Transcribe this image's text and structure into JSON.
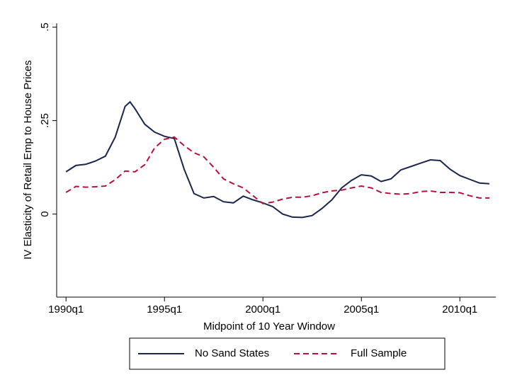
{
  "chart_data": {
    "type": "line",
    "y_label": "IV Elasticity of Retail Emp to House Prices",
    "x_label": "Midpoint of 10 Year Window",
    "x": [
      120,
      122,
      124,
      126,
      128,
      130,
      132,
      133,
      134,
      136,
      138,
      140,
      142,
      144,
      146,
      148,
      150,
      152,
      154,
      156,
      158,
      160,
      162,
      164,
      166,
      168,
      170,
      172,
      174,
      176,
      178,
      180,
      182,
      184,
      186,
      188,
      190,
      192,
      194,
      196,
      198,
      200,
      202,
      204,
      206
    ],
    "series": [
      {
        "name": "No Sand States",
        "color": "#1a2550",
        "dash": "solid",
        "values": [
          0.113,
          0.13,
          0.133,
          0.142,
          0.155,
          0.206,
          0.288,
          0.3,
          0.282,
          0.24,
          0.219,
          0.208,
          0.202,
          0.12,
          0.055,
          0.043,
          0.047,
          0.033,
          0.03,
          0.048,
          0.038,
          0.03,
          0.02,
          0.0,
          -0.008,
          -0.009,
          -0.004,
          0.015,
          0.038,
          0.07,
          0.09,
          0.105,
          0.102,
          0.087,
          0.094,
          0.118,
          0.127,
          0.136,
          0.145,
          0.143,
          0.12,
          0.103,
          0.093,
          0.083,
          0.081
        ]
      },
      {
        "name": "Full Sample",
        "color": "#b5123e",
        "dash": "dashed",
        "values": [
          0.058,
          0.074,
          0.072,
          0.073,
          0.075,
          0.092,
          0.115,
          0.114,
          0.113,
          0.132,
          0.177,
          0.2,
          0.206,
          0.183,
          0.164,
          0.153,
          0.125,
          0.094,
          0.081,
          0.07,
          0.049,
          0.028,
          0.032,
          0.04,
          0.045,
          0.045,
          0.049,
          0.057,
          0.062,
          0.064,
          0.07,
          0.075,
          0.07,
          0.058,
          0.055,
          0.053,
          0.055,
          0.06,
          0.062,
          0.058,
          0.058,
          0.057,
          0.049,
          0.043,
          0.043
        ]
      }
    ],
    "xlim": [
      118.1,
      207.3
    ],
    "xticks": [
      {
        "value": 120,
        "label": "1990q1"
      },
      {
        "value": 140,
        "label": "1995q1"
      },
      {
        "value": 160,
        "label": "2000q1"
      },
      {
        "value": 180,
        "label": "2005q1"
      },
      {
        "value": 200,
        "label": "2010q1"
      }
    ],
    "ylim": [
      -0.222,
      0.51
    ],
    "yticks": [
      0,
      {
        "value": 0.25,
        "label": ".25"
      },
      {
        "value": 0.5,
        "label": ".5"
      }
    ],
    "legend": "bottom"
  }
}
